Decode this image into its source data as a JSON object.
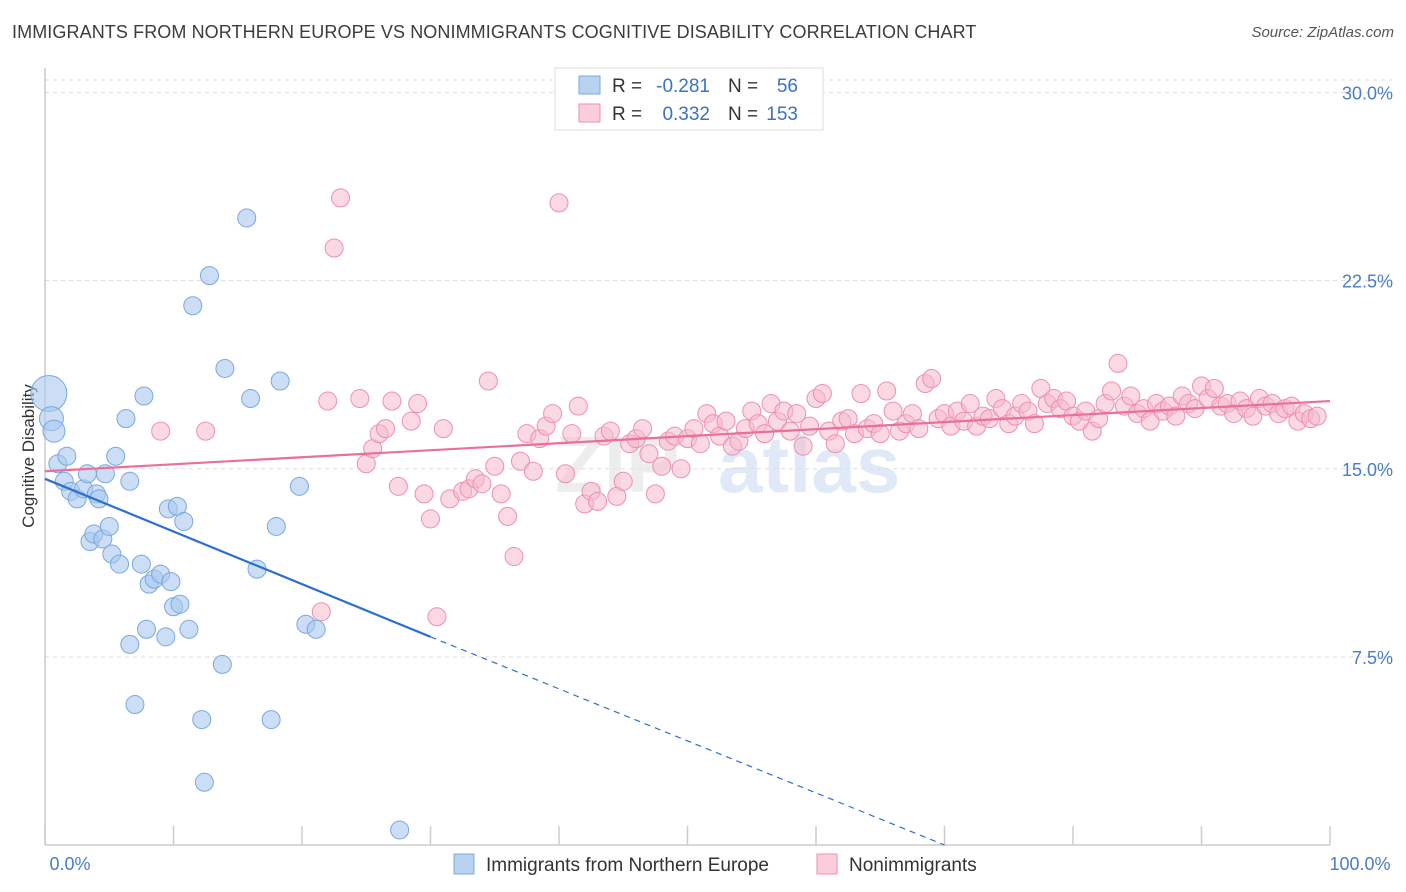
{
  "title": "IMMIGRANTS FROM NORTHERN EUROPE VS NONIMMIGRANTS COGNITIVE DISABILITY CORRELATION CHART",
  "source": "Source: ZipAtlas.com",
  "watermark": {
    "zip": "ZIP",
    "atlas": "atlas"
  },
  "colors": {
    "blue_fill": "#a8c8ee",
    "blue_stroke": "#7aa8dd",
    "blue_line": "#2b6fcf",
    "pink_fill": "#f6b9cc",
    "pink_stroke": "#ee8fb0",
    "pink_line": "#e8709a",
    "axis_label": "#4a7cc7",
    "grid": "#dddddd"
  },
  "legend": {
    "rows": [
      {
        "r_label": "R = ",
        "r_value": "-0.281",
        "n_label": "N = ",
        "n_value": "56"
      },
      {
        "r_label": "R = ",
        "r_value": "0.332",
        "n_label": "N = ",
        "n_value": "153"
      }
    ]
  },
  "bottom_legend": [
    "Immigrants from Northern Europe",
    "Nonimmigrants"
  ],
  "chart_data": {
    "type": "scatter",
    "xlabel": "",
    "ylabel": "Cognitive Disability",
    "xlim": [
      0,
      100
    ],
    "ylim": [
      0,
      30.5
    ],
    "x_tick_labels": [
      "0.0%",
      "100.0%"
    ],
    "y_ticks": [
      7.5,
      15.0,
      22.5,
      30.0
    ],
    "y_tick_labels": [
      "7.5%",
      "15.0%",
      "22.5%",
      "30.0%"
    ],
    "series": [
      {
        "name": "Immigrants from Northern Europe",
        "R": -0.281,
        "N": 56,
        "trend": {
          "x0": 0,
          "y0": 14.6,
          "x1": 30,
          "y1": 8.3,
          "dash_to_x": 70,
          "dash_to_y": 0
        },
        "points": [
          [
            0.3,
            18.0,
            18
          ],
          [
            0.5,
            17.0,
            12
          ],
          [
            0.7,
            16.5,
            11
          ],
          [
            1.0,
            15.2,
            9
          ],
          [
            1.5,
            14.5,
            9
          ],
          [
            1.7,
            15.5,
            9
          ],
          [
            2.0,
            14.1,
            9
          ],
          [
            2.5,
            13.8,
            9
          ],
          [
            3.0,
            14.2,
            9
          ],
          [
            3.3,
            14.8,
            9
          ],
          [
            3.5,
            12.1,
            9
          ],
          [
            3.8,
            12.4,
            9
          ],
          [
            4.0,
            14.0,
            9
          ],
          [
            4.2,
            13.8,
            9
          ],
          [
            4.5,
            12.2,
            9
          ],
          [
            4.7,
            14.8,
            9
          ],
          [
            5.0,
            12.7,
            9
          ],
          [
            5.2,
            11.6,
            9
          ],
          [
            5.5,
            15.5,
            9
          ],
          [
            5.8,
            11.2,
            9
          ],
          [
            6.3,
            17.0,
            9
          ],
          [
            6.6,
            14.5,
            9
          ],
          [
            6.6,
            8.0,
            9
          ],
          [
            7.0,
            5.6,
            9
          ],
          [
            7.5,
            11.2,
            9
          ],
          [
            7.7,
            17.9,
            9
          ],
          [
            7.9,
            8.6,
            9
          ],
          [
            8.1,
            10.4,
            9
          ],
          [
            8.5,
            10.6,
            9
          ],
          [
            9.0,
            10.8,
            9
          ],
          [
            9.4,
            8.3,
            9
          ],
          [
            9.6,
            13.4,
            9
          ],
          [
            9.8,
            10.5,
            9
          ],
          [
            10.0,
            9.5,
            9
          ],
          [
            10.3,
            13.5,
            9
          ],
          [
            10.5,
            9.6,
            9
          ],
          [
            10.8,
            12.9,
            9
          ],
          [
            11.2,
            8.6,
            9
          ],
          [
            11.5,
            21.5,
            9
          ],
          [
            12.2,
            5.0,
            9
          ],
          [
            12.4,
            2.5,
            9
          ],
          [
            12.8,
            22.7,
            9
          ],
          [
            13.8,
            7.2,
            9
          ],
          [
            14.0,
            19.0,
            9
          ],
          [
            15.7,
            25.0,
            9
          ],
          [
            16.0,
            17.8,
            9
          ],
          [
            16.5,
            11.0,
            9
          ],
          [
            17.6,
            5.0,
            9
          ],
          [
            18.0,
            12.7,
            9
          ],
          [
            18.3,
            18.5,
            9
          ],
          [
            19.8,
            14.3,
            9
          ],
          [
            20.3,
            8.8,
            9
          ],
          [
            21.1,
            8.6,
            9
          ],
          [
            27.6,
            0.6,
            9
          ]
        ]
      },
      {
        "name": "Nonimmigrants",
        "R": 0.332,
        "N": 153,
        "trend": {
          "x0": 0,
          "y0": 14.9,
          "x1": 100,
          "y1": 17.7
        },
        "points": [
          [
            9.0,
            16.5
          ],
          [
            12.5,
            16.5
          ],
          [
            21.5,
            9.3
          ],
          [
            22.0,
            17.7
          ],
          [
            22.5,
            23.8
          ],
          [
            23.0,
            25.8
          ],
          [
            24.5,
            17.8
          ],
          [
            25.0,
            15.2
          ],
          [
            25.5,
            15.8
          ],
          [
            26.0,
            16.4
          ],
          [
            26.5,
            16.6
          ],
          [
            27.0,
            17.7
          ],
          [
            27.5,
            14.3
          ],
          [
            28.5,
            16.9
          ],
          [
            29.0,
            17.6
          ],
          [
            29.5,
            14.0
          ],
          [
            30.0,
            13.0
          ],
          [
            30.5,
            9.1
          ],
          [
            31.0,
            16.6
          ],
          [
            31.5,
            13.8
          ],
          [
            32.5,
            14.1
          ],
          [
            33.0,
            14.2
          ],
          [
            33.5,
            14.6
          ],
          [
            34.0,
            14.4
          ],
          [
            34.5,
            18.5
          ],
          [
            35.0,
            15.1
          ],
          [
            35.5,
            14.0
          ],
          [
            36.0,
            13.1
          ],
          [
            36.5,
            11.5
          ],
          [
            37.0,
            15.3
          ],
          [
            37.5,
            16.4
          ],
          [
            38.0,
            14.9
          ],
          [
            38.5,
            16.2
          ],
          [
            39.0,
            16.7
          ],
          [
            39.5,
            17.2
          ],
          [
            40.0,
            25.6
          ],
          [
            40.5,
            14.8
          ],
          [
            41.0,
            16.4
          ],
          [
            41.5,
            17.5
          ],
          [
            42.0,
            13.6
          ],
          [
            42.5,
            14.1
          ],
          [
            43.0,
            13.7
          ],
          [
            43.5,
            16.3
          ],
          [
            44.0,
            16.5
          ],
          [
            44.5,
            13.9
          ],
          [
            45.0,
            14.5
          ],
          [
            45.5,
            16.0
          ],
          [
            46.0,
            16.2
          ],
          [
            46.5,
            16.6
          ],
          [
            47.0,
            15.6
          ],
          [
            47.5,
            14.0
          ],
          [
            48.0,
            15.1
          ],
          [
            48.5,
            16.1
          ],
          [
            49.0,
            16.3
          ],
          [
            49.5,
            15.0
          ],
          [
            50.0,
            16.2
          ],
          [
            50.5,
            16.6
          ],
          [
            51.0,
            16.0
          ],
          [
            51.5,
            17.2
          ],
          [
            52.0,
            16.8
          ],
          [
            52.5,
            16.3
          ],
          [
            53.0,
            16.9
          ],
          [
            53.5,
            15.9
          ],
          [
            54.0,
            16.1
          ],
          [
            54.5,
            16.6
          ],
          [
            55.0,
            17.3
          ],
          [
            55.5,
            16.8
          ],
          [
            56.0,
            16.4
          ],
          [
            56.5,
            17.6
          ],
          [
            57.0,
            16.9
          ],
          [
            57.5,
            17.3
          ],
          [
            58.0,
            16.5
          ],
          [
            58.5,
            17.2
          ],
          [
            59.0,
            15.9
          ],
          [
            59.5,
            16.7
          ],
          [
            60.0,
            17.8
          ],
          [
            60.5,
            18.0
          ],
          [
            61.0,
            16.5
          ],
          [
            61.5,
            16.0
          ],
          [
            62.0,
            16.9
          ],
          [
            62.5,
            17.0
          ],
          [
            63.0,
            16.4
          ],
          [
            63.5,
            18.0
          ],
          [
            64.0,
            16.6
          ],
          [
            64.5,
            16.8
          ],
          [
            65.0,
            16.4
          ],
          [
            65.5,
            18.1
          ],
          [
            66.0,
            17.3
          ],
          [
            66.5,
            16.5
          ],
          [
            67.0,
            16.8
          ],
          [
            67.5,
            17.2
          ],
          [
            68.0,
            16.6
          ],
          [
            68.5,
            18.4
          ],
          [
            69.0,
            18.6
          ],
          [
            69.5,
            17.0
          ],
          [
            70.0,
            17.2
          ],
          [
            70.5,
            16.7
          ],
          [
            71.0,
            17.3
          ],
          [
            71.5,
            16.9
          ],
          [
            72.0,
            17.6
          ],
          [
            72.5,
            16.7
          ],
          [
            73.0,
            17.1
          ],
          [
            73.5,
            17.0
          ],
          [
            74.0,
            17.8
          ],
          [
            74.5,
            17.4
          ],
          [
            75.0,
            16.8
          ],
          [
            75.5,
            17.1
          ],
          [
            76.0,
            17.6
          ],
          [
            76.5,
            17.3
          ],
          [
            77.0,
            16.8
          ],
          [
            77.5,
            18.2
          ],
          [
            78.0,
            17.6
          ],
          [
            78.5,
            17.8
          ],
          [
            79.0,
            17.4
          ],
          [
            79.5,
            17.7
          ],
          [
            80.0,
            17.1
          ],
          [
            80.5,
            16.9
          ],
          [
            81.0,
            17.3
          ],
          [
            81.5,
            16.5
          ],
          [
            82.0,
            17.0
          ],
          [
            82.5,
            17.6
          ],
          [
            83.0,
            18.1
          ],
          [
            83.5,
            19.2
          ],
          [
            84.0,
            17.5
          ],
          [
            84.5,
            17.9
          ],
          [
            85.0,
            17.2
          ],
          [
            85.5,
            17.4
          ],
          [
            86.0,
            16.9
          ],
          [
            86.5,
            17.6
          ],
          [
            87.0,
            17.3
          ],
          [
            87.5,
            17.5
          ],
          [
            88.0,
            17.1
          ],
          [
            88.5,
            17.9
          ],
          [
            89.0,
            17.6
          ],
          [
            89.5,
            17.4
          ],
          [
            90.0,
            18.3
          ],
          [
            90.5,
            17.8
          ],
          [
            91.0,
            18.2
          ],
          [
            91.5,
            17.5
          ],
          [
            92.0,
            17.6
          ],
          [
            92.5,
            17.2
          ],
          [
            93.0,
            17.7
          ],
          [
            93.5,
            17.4
          ],
          [
            94.0,
            17.1
          ],
          [
            94.5,
            17.8
          ],
          [
            95.0,
            17.5
          ],
          [
            95.5,
            17.6
          ],
          [
            96.0,
            17.2
          ],
          [
            96.5,
            17.4
          ],
          [
            97.0,
            17.5
          ],
          [
            97.5,
            16.9
          ],
          [
            98.0,
            17.2
          ],
          [
            98.5,
            17.0
          ],
          [
            99.0,
            17.1
          ]
        ]
      }
    ]
  }
}
